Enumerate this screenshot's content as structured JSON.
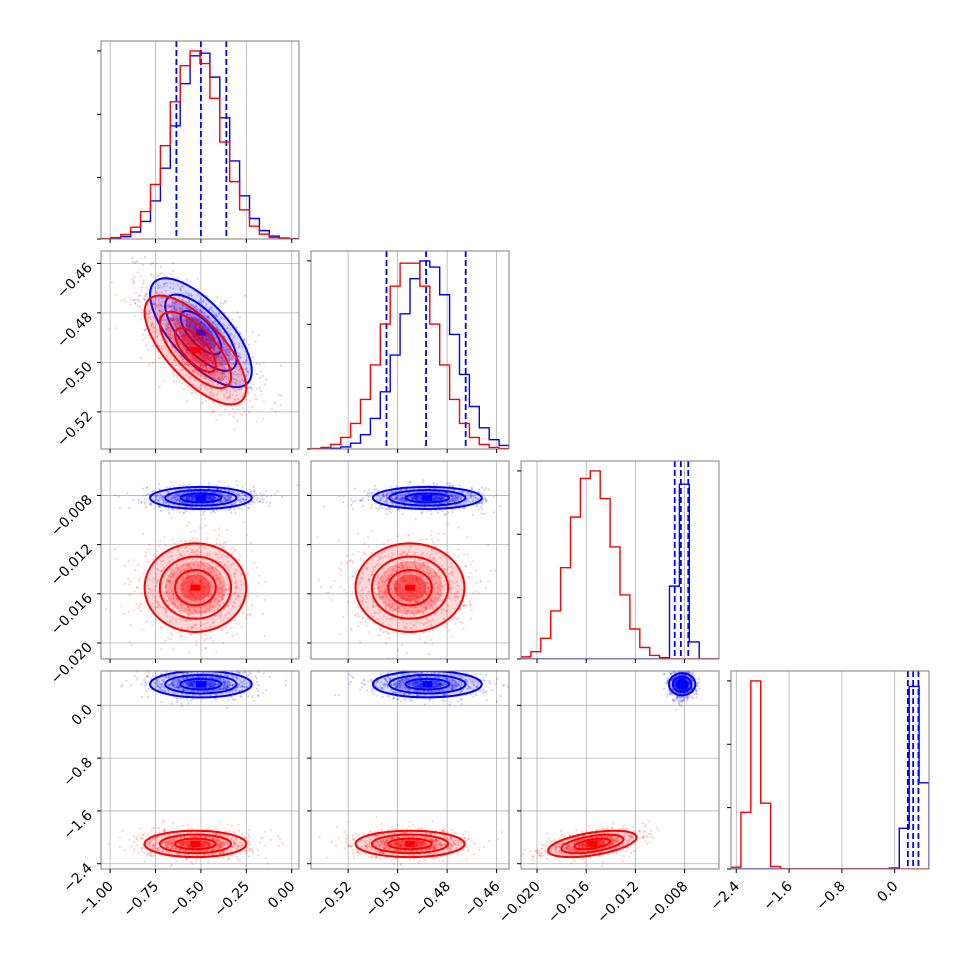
{
  "colors": {
    "blue": "#0000ff",
    "red": "#ff0000",
    "grid": "#b0b0b0",
    "frame": "#7f7f7f"
  },
  "chart_data": {
    "type": "corner",
    "n_params": 4,
    "grid": true,
    "axes": [
      {
        "lim": [
          -1.05,
          0.04
        ],
        "ticks": [
          "-1.00",
          "-0.75",
          "-0.50",
          "-0.25",
          "0.00"
        ],
        "tick_values": [
          -1.0,
          -0.75,
          -0.5,
          -0.25,
          0.0
        ]
      },
      {
        "lim": [
          -0.535,
          -0.455
        ],
        "ticks": [
          "-0.52",
          "-0.50",
          "-0.48",
          "-0.46"
        ],
        "tick_values": [
          -0.52,
          -0.5,
          -0.48,
          -0.46
        ]
      },
      {
        "lim": [
          -0.0213,
          -0.0052
        ],
        "ticks": [
          "-0.020",
          "-0.016",
          "-0.012",
          "-0.008"
        ],
        "tick_values": [
          -0.02,
          -0.016,
          -0.012,
          -0.008
        ]
      },
      {
        "lim": [
          -2.48,
          0.52
        ],
        "ticks": [
          "-2.4",
          "-1.6",
          "-0.8",
          "0.0"
        ],
        "tick_values": [
          -2.4,
          -1.6,
          -0.8,
          0.0
        ]
      }
    ],
    "series": [
      {
        "name": "",
        "color": "blue",
        "means": [
          -0.5,
          -0.488,
          -0.0082,
          0.32
        ],
        "sds": [
          0.14,
          0.011,
          0.00045,
          0.1
        ],
        "rho": [
          [
            1,
            -0.7,
            0,
            0
          ],
          [
            -0.7,
            1,
            0,
            0
          ],
          [
            0,
            0,
            1,
            0
          ],
          [
            0,
            0,
            0,
            1
          ]
        ],
        "quantiles": [
          [
            -0.635,
            -0.5,
            -0.36
          ],
          [
            -0.5045,
            -0.4885,
            -0.4725
          ],
          [
            -0.0088,
            -0.0083,
            -0.0077
          ],
          [
            0.2,
            0.28,
            0.36
          ]
        ]
      },
      {
        "name": "",
        "color": "red",
        "means": [
          -0.53,
          -0.495,
          -0.0155,
          -2.1
        ],
        "sds": [
          0.14,
          0.011,
          0.0018,
          0.1
        ],
        "rho": [
          [
            1,
            -0.7,
            0,
            0
          ],
          [
            -0.7,
            1,
            0,
            0
          ],
          [
            0,
            0,
            1,
            0.5
          ],
          [
            0,
            0,
            0.5,
            1
          ]
        ],
        "quantiles": null
      }
    ]
  }
}
